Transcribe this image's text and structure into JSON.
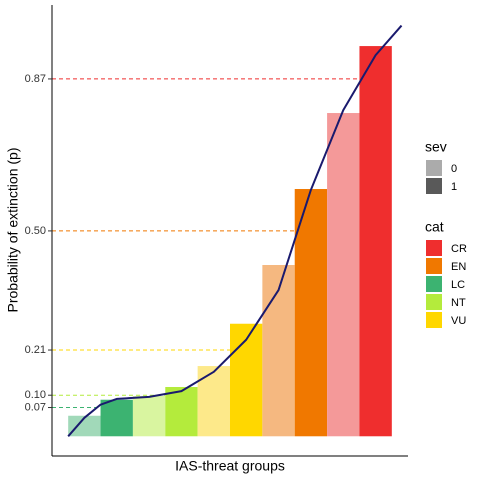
{
  "chart_data": {
    "type": "bar",
    "xlabel": "IAS-threat groups",
    "ylabel": "Probability of extinction (p)",
    "xlim": [
      0,
      11
    ],
    "ylim": [
      -0.048,
      1.05
    ],
    "yticks": [
      0.07,
      {
        "value": 0.1,
        "label": "0.10"
      },
      0.21,
      {
        "value": 0.5,
        "label": "0.50"
      },
      0.87
    ],
    "values": [
      0.05,
      0.089,
      0.098,
      0.12,
      0.171,
      0.274,
      0.417,
      0.602,
      0.787,
      0.95
    ],
    "colors": [
      "#a1d9b9",
      "#3cb371",
      "#d9f5a0",
      "#b4eb3c",
      "#fde98a",
      "#ffd700",
      "#f5b880",
      "#f07800",
      "#f49999",
      "#ef2e2e"
    ],
    "hlines": [
      {
        "value": 0.07,
        "color": "#3cb371",
        "x_end": 1.5
      },
      {
        "value": 0.1,
        "color": "#b4eb3c",
        "x_end": 3.5
      },
      {
        "value": 0.21,
        "color": "#ffd700",
        "x_end": 5.5
      },
      {
        "value": 0.5,
        "color": "#f07800",
        "x_end": 7.5
      },
      {
        "value": 0.87,
        "color": "#ef2e2e",
        "x_end": 9.5
      }
    ],
    "curve": {
      "color": "#1a1a6e",
      "x": [
        0.5,
        1,
        1.5,
        2,
        3,
        4,
        5,
        6,
        7,
        8,
        9,
        10,
        10.8
      ],
      "values": [
        0.0,
        0.045,
        0.077,
        0.091,
        0.096,
        0.11,
        0.157,
        0.235,
        0.356,
        0.6,
        0.794,
        0.928,
        1.0
      ]
    },
    "legends": [
      {
        "title": "sev",
        "items": [
          {
            "label": "0",
            "color": "#ababab"
          },
          {
            "label": "1",
            "color": "#595959"
          }
        ]
      },
      {
        "title": "cat",
        "items": [
          {
            "label": "CR",
            "color": "#ef2e2e"
          },
          {
            "label": "EN",
            "color": "#f07800"
          },
          {
            "label": "LC",
            "color": "#3cb371"
          },
          {
            "label": "NT",
            "color": "#b4eb3c"
          },
          {
            "label": "VU",
            "color": "#ffd700"
          }
        ]
      }
    ]
  }
}
